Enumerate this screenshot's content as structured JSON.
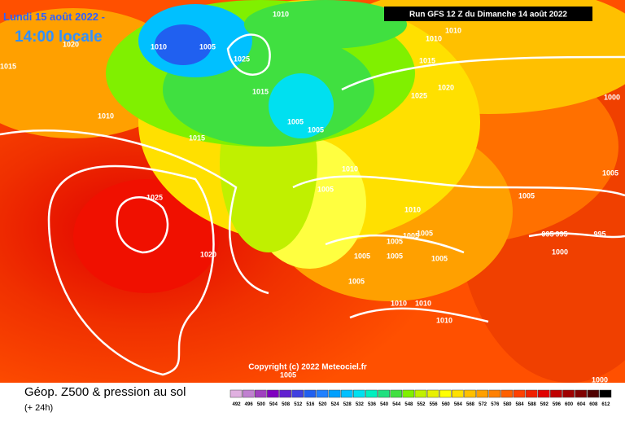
{
  "header": {
    "date_line": "Lundi 15 août 2022 -",
    "time_line": "14:00 locale"
  },
  "run_label": "Run GFS 12 Z du Dimanche 14 août 2022",
  "copyright": "Copyright (c) 2022 Meteociel.fr",
  "isobar_labels": [
    "1010",
    "1005",
    "1025",
    "1010",
    "1010",
    "1010",
    "1015",
    "1020",
    "1025",
    "1020",
    "1015",
    "1010",
    "1015",
    "1015",
    "1005",
    "1005",
    "1025",
    "1020",
    "1010",
    "1005",
    "1010",
    "1005",
    "1000",
    "1005",
    "995",
    "995",
    "995",
    "1000",
    "1005",
    "1005",
    "1005",
    "1005",
    "1005",
    "1005",
    "1005",
    "1010",
    "1010",
    "1010",
    "1005",
    "1000"
  ],
  "footer": {
    "title": "Géop. Z500 & pression au sol",
    "subtitle": "(+ 24h)"
  },
  "colorbar": {
    "labels": [
      492,
      496,
      500,
      504,
      508,
      512,
      516,
      520,
      524,
      528,
      532,
      536,
      540,
      544,
      548,
      552,
      556,
      560,
      564,
      568,
      572,
      576,
      580,
      584,
      588,
      592,
      596,
      600,
      604,
      608,
      612
    ],
    "colors": [
      "#e0b0e0",
      "#c080d0",
      "#a040c0",
      "#8000c0",
      "#6020d0",
      "#4040e0",
      "#2060f0",
      "#2080ff",
      "#00a0ff",
      "#00c0ff",
      "#00e0f0",
      "#00f0c0",
      "#20e080",
      "#40e040",
      "#80f000",
      "#c0f000",
      "#e8f000",
      "#ffff00",
      "#ffe000",
      "#ffc000",
      "#ffa000",
      "#ff8000",
      "#ff6000",
      "#ff4000",
      "#f02000",
      "#e00000",
      "#c00000",
      "#a00000",
      "#800000",
      "#500000",
      "#000000"
    ]
  }
}
